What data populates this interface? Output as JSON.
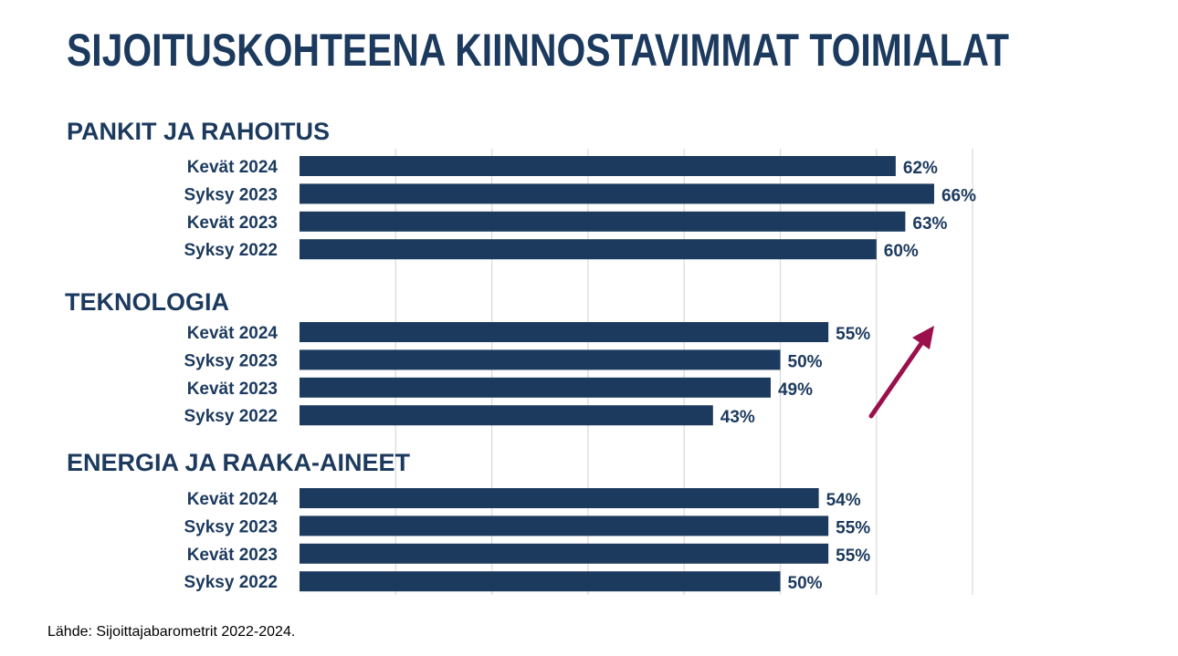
{
  "chart_data": {
    "type": "bar",
    "orientation": "horizontal",
    "title": "SIJOITUSKOHTEENA KIINNOSTAVIMMAT TOIMIALAT",
    "source": "Lähde: Sijoittajabarometrit 2022-2024.",
    "xlim": [
      0,
      70
    ],
    "grid": true,
    "value_suffix": "%",
    "colors": {
      "bar": "#1c3a5e",
      "text": "#1c3a5e",
      "grid": "#d9d9d9",
      "arrow": "#9b0f4b"
    },
    "annotation": {
      "type": "arrow",
      "direction": "up-right",
      "near_group": "TEKNOLOGIA"
    },
    "groups": [
      {
        "name": "PANKIT JA RAHOITUS",
        "categories": [
          "Kevät 2024",
          "Syksy 2023",
          "Kevät 2023",
          "Syksy 2022"
        ],
        "values": [
          62,
          66,
          63,
          60
        ]
      },
      {
        "name": "TEKNOLOGIA",
        "categories": [
          "Kevät 2024",
          "Syksy 2023",
          "Kevät 2023",
          "Syksy 2022"
        ],
        "values": [
          55,
          50,
          49,
          43
        ]
      },
      {
        "name": "ENERGIA JA RAAKA-AINEET",
        "categories": [
          "Kevät 2024",
          "Syksy 2023",
          "Kevät 2023",
          "Syksy 2022"
        ],
        "values": [
          54,
          55,
          55,
          50
        ]
      }
    ]
  }
}
